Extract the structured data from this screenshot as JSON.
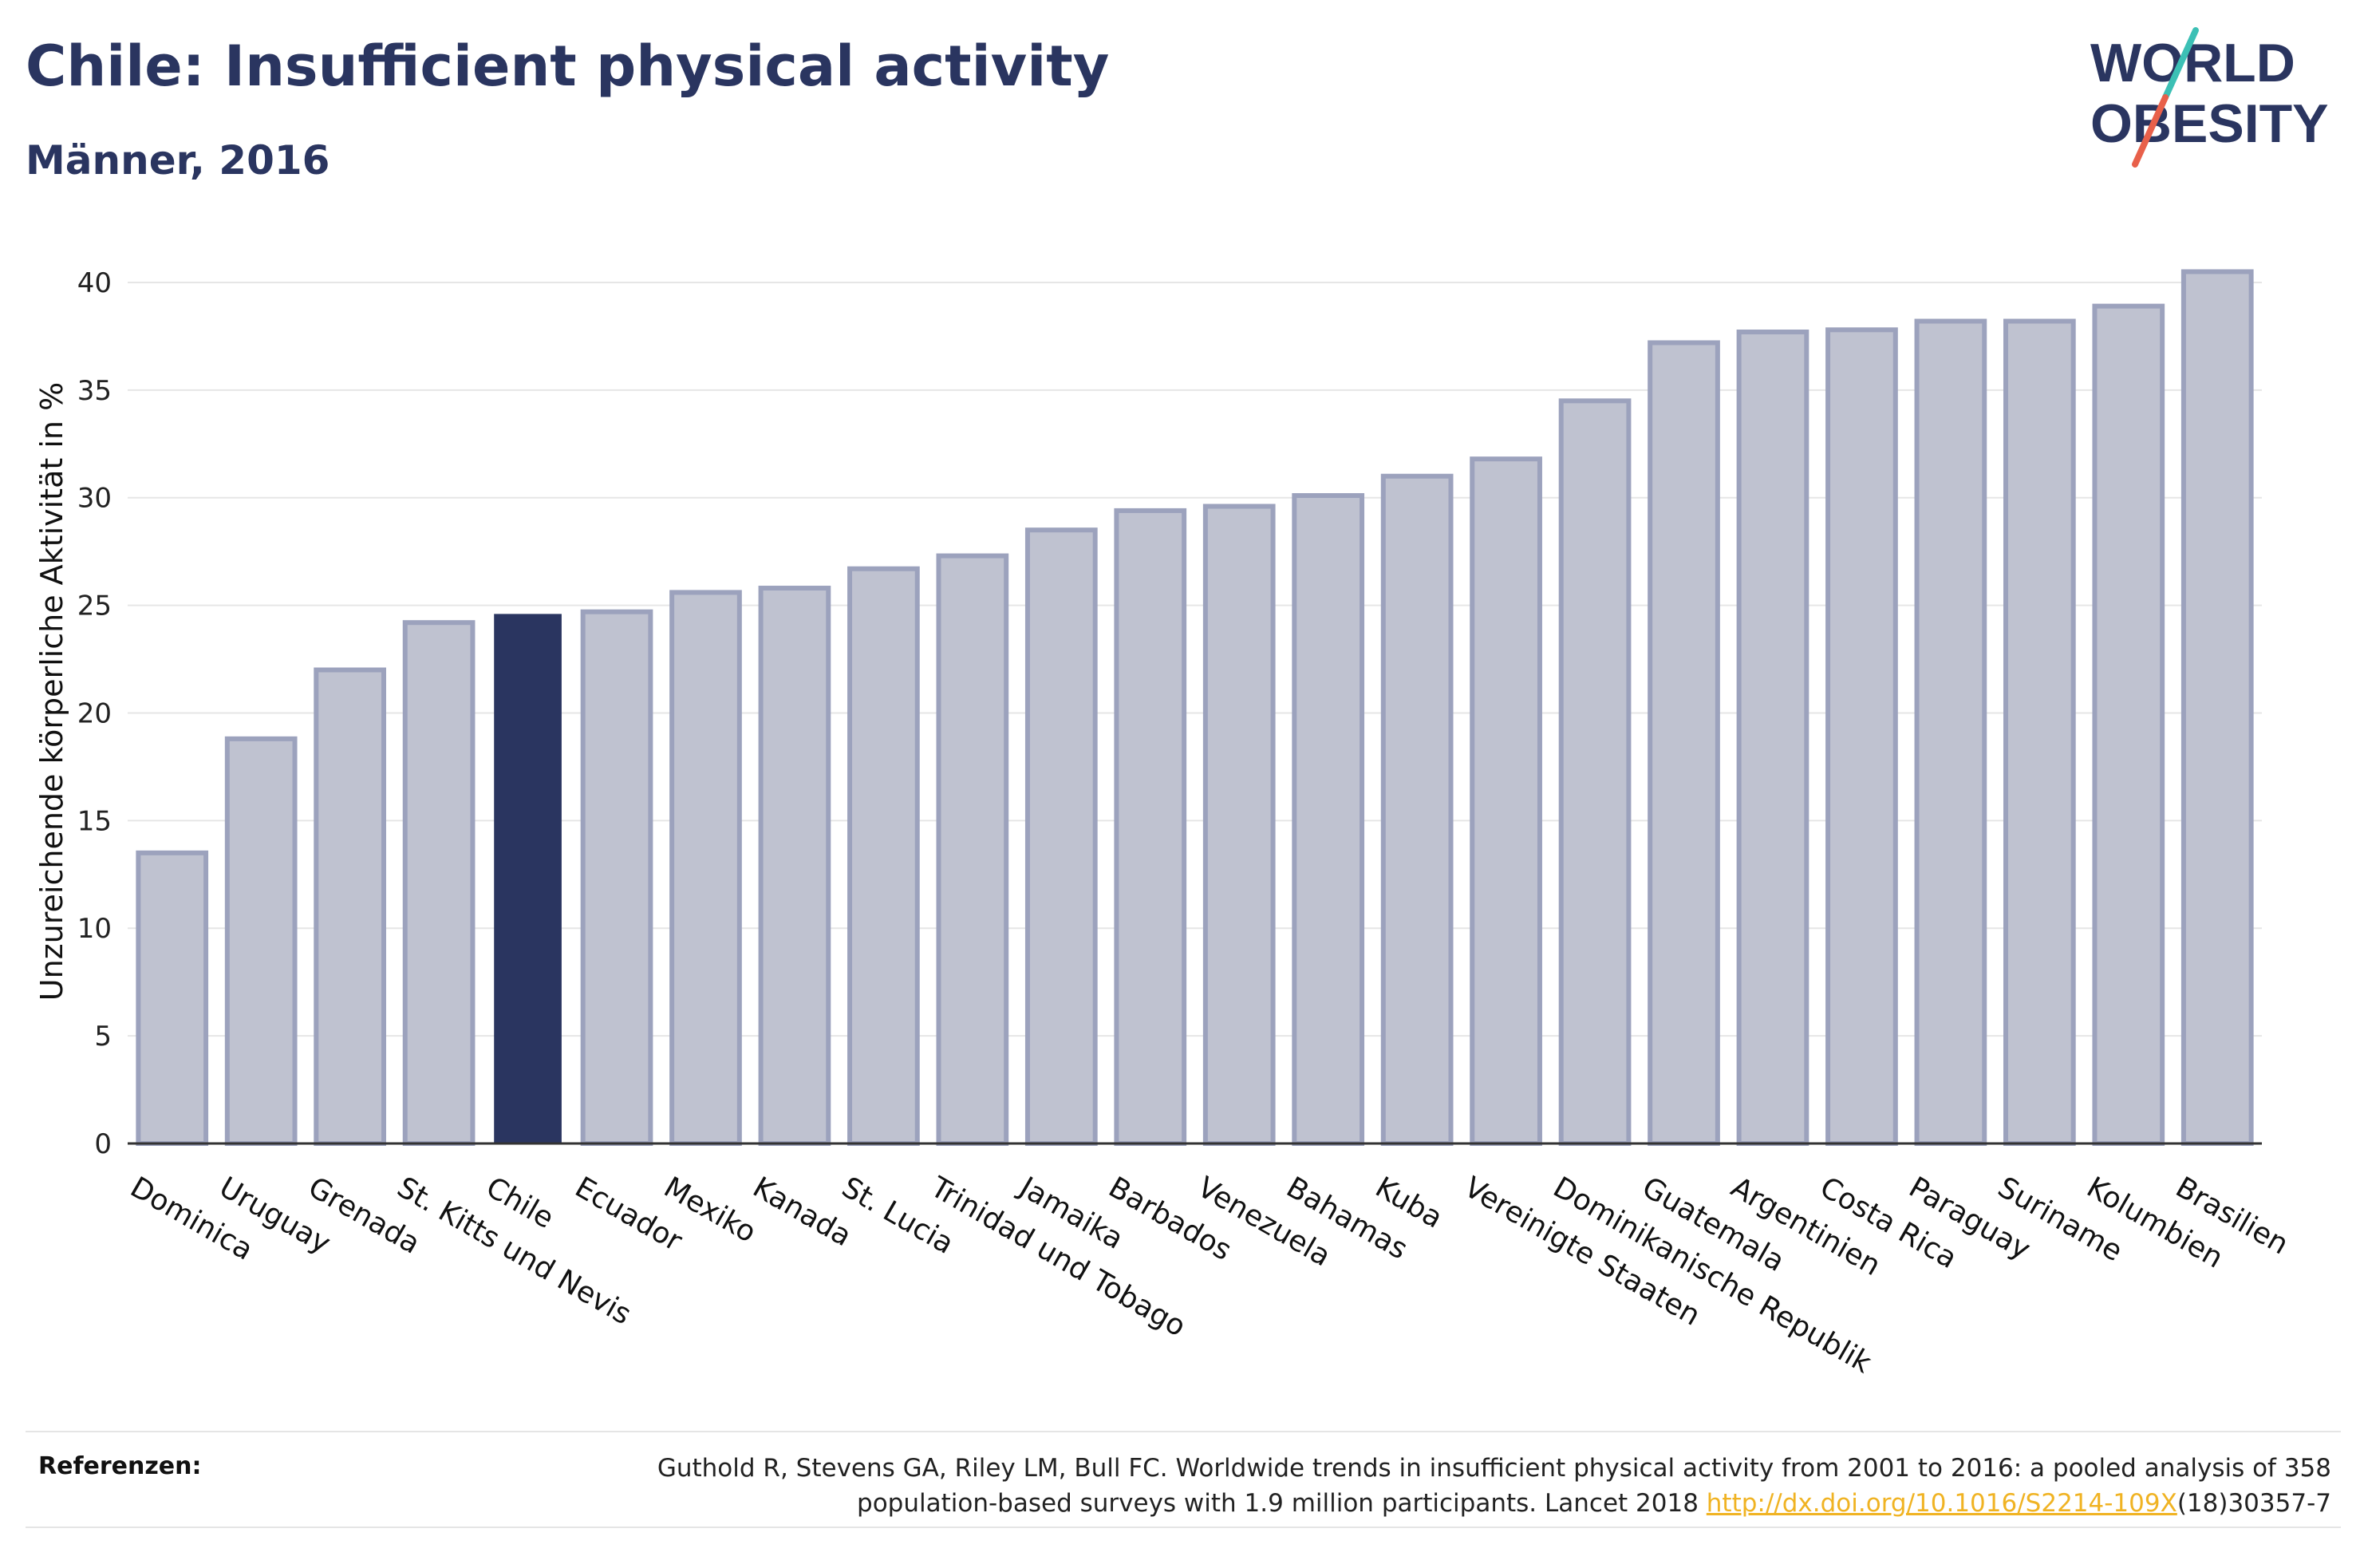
{
  "header": {
    "title": "Chile: Insufficient physical activity",
    "subtitle": "Männer, 2016"
  },
  "logo": {
    "line1": "WORLD",
    "line2": "OBESITY",
    "text_color": "#2a3560",
    "slash_color_top": "#3cc0b5",
    "slash_color_bottom": "#e8604a"
  },
  "colors": {
    "bar": "#bfc2d0",
    "bar_border": "#9ca2bd",
    "highlight": "#2a3560",
    "grid": "#e6e6e6",
    "axis": "#333333"
  },
  "chart_data": {
    "type": "bar",
    "title": "",
    "xlabel": "",
    "ylabel": "Unzureichende körperliche Aktivität in %",
    "ylim": [
      0,
      42
    ],
    "yticks": [
      0,
      5,
      10,
      15,
      20,
      25,
      30,
      35,
      40
    ],
    "grid": true,
    "highlight": "Chile",
    "categories": [
      "Dominica",
      "Uruguay",
      "Grenada",
      "St. Kitts und Nevis",
      "Chile",
      "Ecuador",
      "Mexiko",
      "Kanada",
      "St. Lucia",
      "Trinidad und Tobago",
      "Jamaika",
      "Barbados",
      "Venezuela",
      "Bahamas",
      "Kuba",
      "Vereinigte Staaten",
      "Dominikanische Republik",
      "Guatemala",
      "Argentinien",
      "Costa Rica",
      "Paraguay",
      "Suriname",
      "Kolumbien",
      "Brasilien"
    ],
    "values": [
      13.5,
      18.8,
      22.0,
      24.2,
      24.6,
      24.7,
      25.6,
      25.8,
      26.7,
      27.3,
      28.5,
      29.4,
      29.6,
      30.1,
      31.0,
      31.8,
      34.5,
      37.2,
      37.7,
      37.8,
      38.2,
      38.2,
      38.9,
      40.5
    ]
  },
  "references": {
    "label": "Referenzen:",
    "line1": "Guthold R, Stevens GA, Riley LM, Bull FC. Worldwide trends in insufficient physical activity from 2001 to 2016: a pooled analysis of 358",
    "line2_pre": "population-based surveys with 1.9 million participants. Lancet 2018 ",
    "link": "http://dx.doi.org/10.1016/S2214-109X",
    "line2_post": "(18)30357-7"
  }
}
